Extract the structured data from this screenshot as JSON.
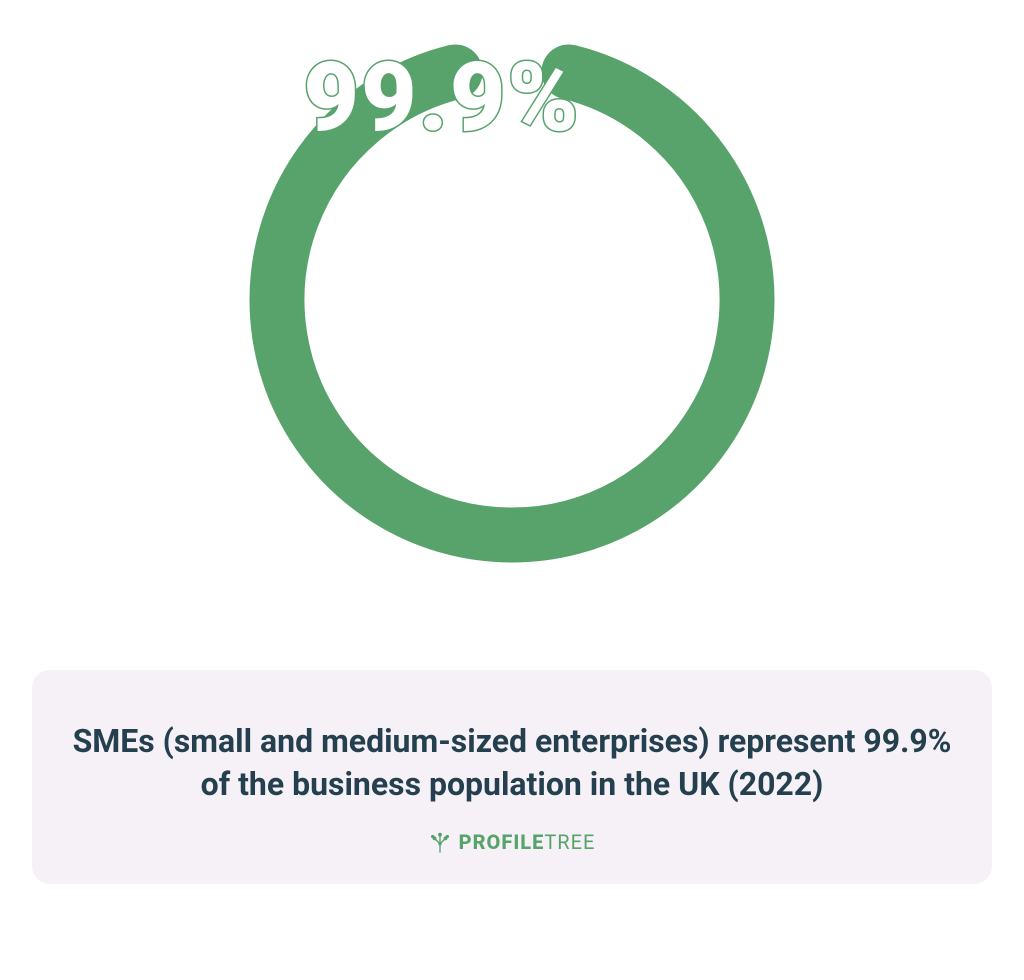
{
  "chart": {
    "type": "donut",
    "percent": 99.9,
    "center_label": "99.9%",
    "center_label_fontsize": 96,
    "center_label_color": "#57a36b",
    "center_label_fill": "#ffffff",
    "center_label_stroke_width": 3,
    "ring_color": "#57a36b",
    "ring_bg_color": "#ffffff",
    "ring_width": 55,
    "gap_degrees": 28,
    "size": 560,
    "radius": 235,
    "background_color": "#ffffff"
  },
  "description": {
    "box_bg": "#f6f0f7",
    "box_radius": 18,
    "text": "SMEs (small and medium-sized enterprises) represent 99.9% of the business population in the UK (2022)",
    "text_color": "#24404e",
    "text_fontsize": 32,
    "text_fontweight": 700
  },
  "brand": {
    "name_bold": "PROFILE",
    "name_light": "TREE",
    "color": "#57a36b",
    "fontsize": 20,
    "icon_color": "#57a36b"
  }
}
